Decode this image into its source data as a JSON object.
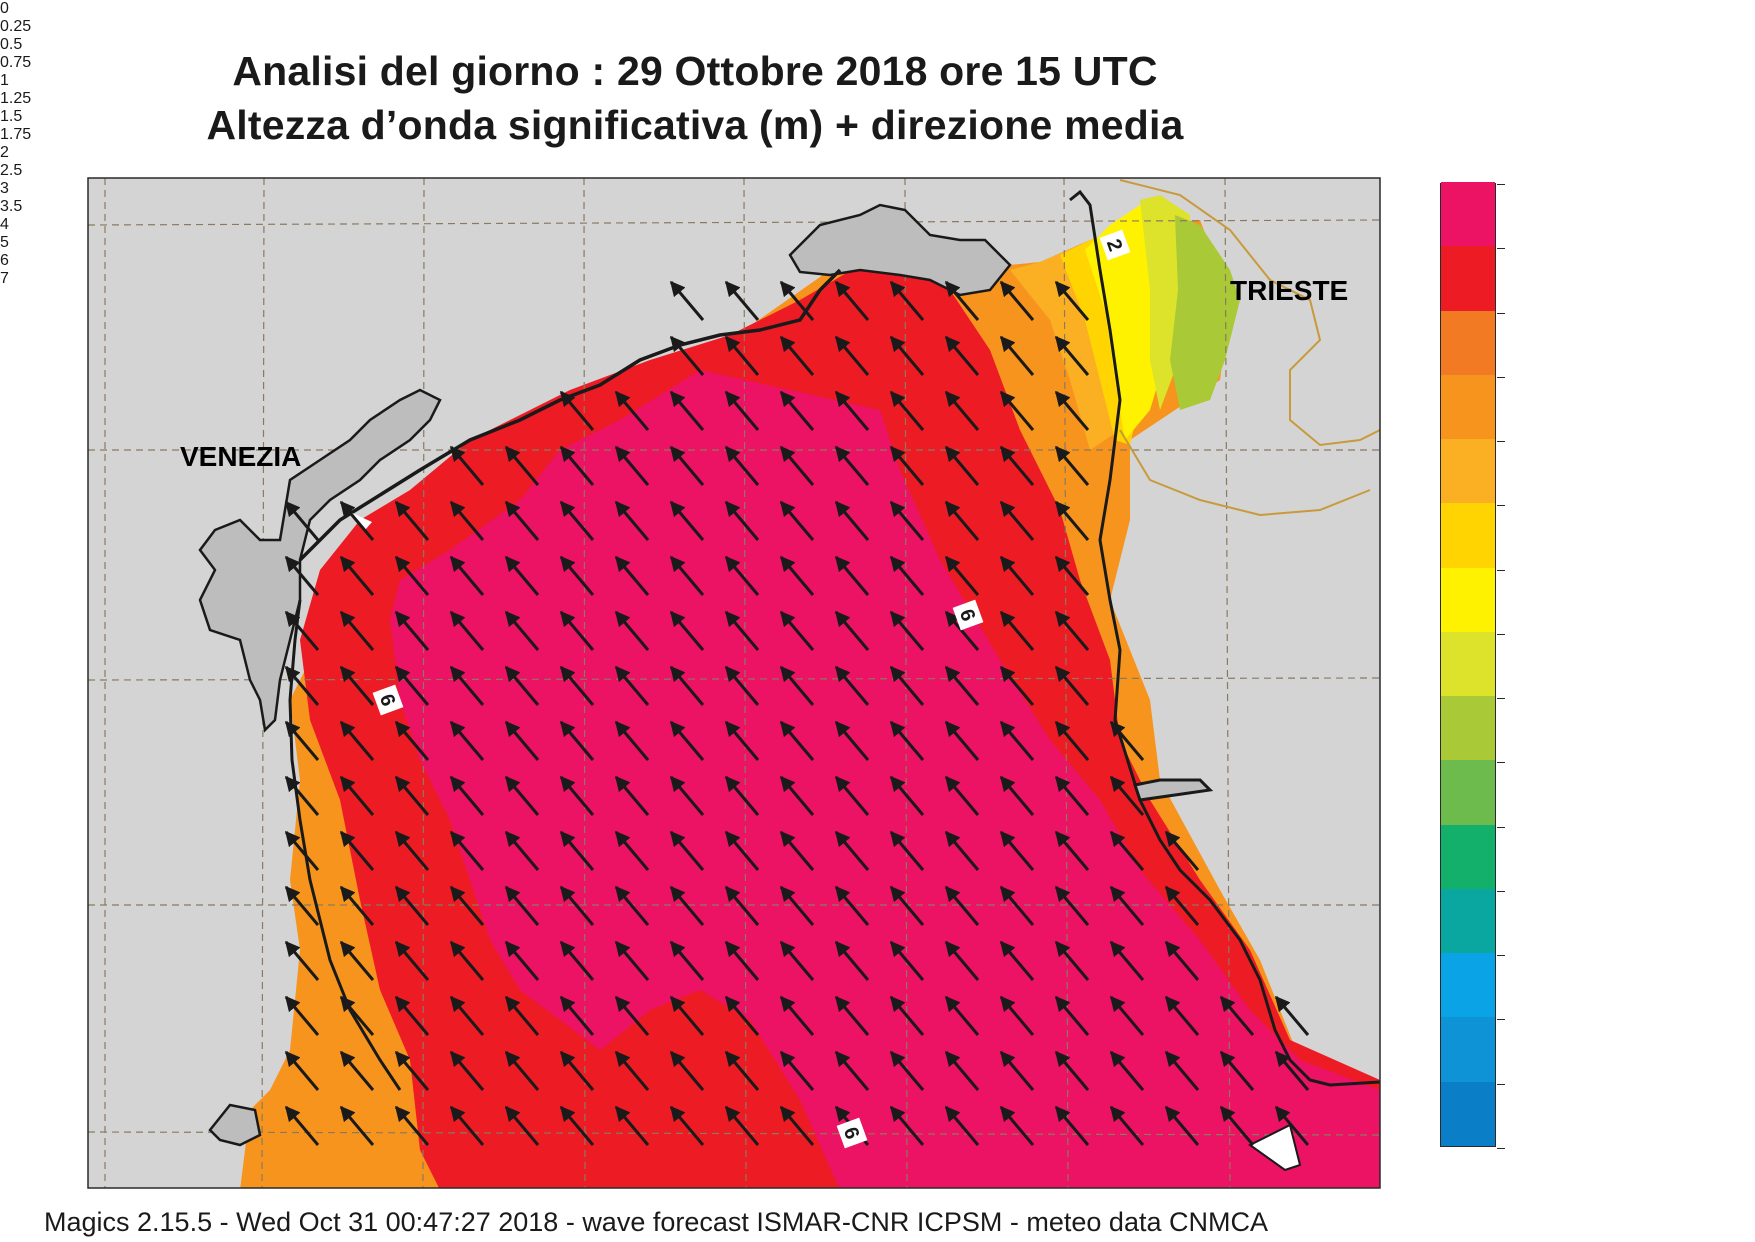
{
  "title": {
    "line1": "Analisi del giorno :  29  Ottobre  2018   ore 15 UTC",
    "line2": "Altezza d’onda significativa (m) + direzione media"
  },
  "map": {
    "places": [
      "VENEZIA",
      "TRIESTE"
    ],
    "contour_labels": [
      "2",
      "6",
      "6",
      "6"
    ],
    "mean_wave_direction_icon": "arrow-nw-icon"
  },
  "legend": {
    "levels": [
      "0",
      "0.25",
      "0.5",
      "0.75",
      "1",
      "1.25",
      "1.5",
      "1.75",
      "2",
      "2.5",
      "3",
      "3.5",
      "4",
      "5",
      "6",
      "7"
    ],
    "colors": [
      "#0a63b8",
      "#0a7ec6",
      "#0e93d6",
      "#0aa3e6",
      "#0aa6a0",
      "#12b06b",
      "#6cbb4c",
      "#a9c936",
      "#dde32a",
      "#fff200",
      "#ffd400",
      "#fbb024",
      "#f7941d",
      "#f27a22",
      "#ed1c24",
      "#ec1264"
    ]
  },
  "footer": "Magics 2.15.5 - Wed Oct 31 00:47:27 2018 - wave forecast  ISMAR-CNR  ICPSM - meteo data   CNMCA"
}
